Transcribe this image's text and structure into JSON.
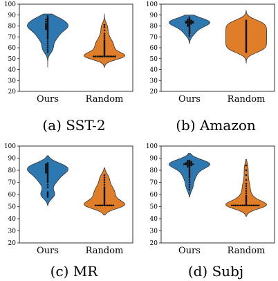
{
  "colors": {
    "ours": "#2e78b2",
    "random": "#e07d28",
    "dots": "#111111"
  },
  "chart_data": [
    {
      "type": "violin",
      "caption": "(a)  SST-2",
      "categories": [
        "Ours",
        "Random"
      ],
      "ylim": [
        20,
        100
      ],
      "yticks": [
        20,
        30,
        40,
        50,
        60,
        70,
        80,
        90,
        100
      ],
      "series": [
        {
          "category": "Ours",
          "range": [
            42,
            91
          ],
          "values": [
            89,
            88,
            87,
            86,
            86,
            85,
            84,
            84,
            83,
            82,
            82,
            81,
            81,
            80,
            80,
            79,
            79,
            78,
            78,
            77,
            77,
            76,
            75,
            74,
            73,
            72,
            71,
            70,
            69,
            68,
            66,
            64,
            62,
            60,
            58,
            56
          ]
        },
        {
          "category": "Random",
          "range": [
            42,
            91
          ],
          "values": [
            81,
            79,
            76,
            73,
            71,
            69,
            67,
            66,
            65,
            64,
            63,
            62,
            61,
            60,
            59,
            58,
            57,
            56,
            55,
            54,
            53,
            52,
            52,
            52,
            52,
            52,
            52,
            52,
            52,
            52,
            52,
            52,
            52,
            52
          ]
        }
      ]
    },
    {
      "type": "violin",
      "caption": "(b)  Amazon",
      "categories": [
        "Ours",
        "Random"
      ],
      "ylim": [
        20,
        100
      ],
      "yticks": [
        20,
        30,
        40,
        50,
        60,
        70,
        80,
        90,
        100
      ],
      "series": [
        {
          "category": "Ours",
          "range": [
            64,
            90
          ],
          "values": [
            88,
            87,
            86,
            86,
            85,
            85,
            85,
            84,
            84,
            84,
            84,
            84,
            83,
            83,
            83,
            83,
            83,
            82,
            82,
            82,
            81,
            81,
            80,
            80,
            79,
            78,
            77,
            76,
            75,
            74,
            73,
            71
          ]
        },
        {
          "category": "Random",
          "range": [
            46,
            94
          ],
          "values": [
            85,
            84,
            83,
            82,
            81,
            80,
            79,
            78,
            77,
            76,
            75,
            74,
            73,
            72,
            71,
            70,
            69,
            68,
            67,
            66,
            65,
            64,
            63,
            62,
            61,
            60,
            59,
            58,
            57,
            56
          ]
        }
      ]
    },
    {
      "type": "violin",
      "caption": "(c)  MR",
      "categories": [
        "Ours",
        "Random"
      ],
      "ylim": [
        20,
        100
      ],
      "yticks": [
        20,
        30,
        40,
        50,
        60,
        70,
        80,
        90,
        100
      ],
      "series": [
        {
          "category": "Ours",
          "range": [
            51,
            92
          ],
          "values": [
            86,
            85,
            85,
            84,
            84,
            83,
            83,
            82,
            82,
            81,
            81,
            80,
            80,
            79,
            79,
            78,
            78,
            77,
            76,
            75,
            74,
            73,
            72,
            71,
            70,
            68,
            66,
            62,
            61,
            60,
            59,
            58
          ]
        },
        {
          "category": "Random",
          "range": [
            43,
            82
          ],
          "values": [
            76,
            74,
            72,
            70,
            68,
            66,
            65,
            64,
            63,
            62,
            61,
            60,
            59,
            58,
            57,
            56,
            55,
            54,
            53,
            52,
            51,
            51,
            51,
            51,
            51,
            51,
            51,
            51,
            51,
            51,
            51
          ]
        }
      ]
    },
    {
      "type": "violin",
      "caption": "(d)  Subj",
      "categories": [
        "Ours",
        "Random"
      ],
      "ylim": [
        20,
        100
      ],
      "yticks": [
        20,
        30,
        40,
        50,
        60,
        70,
        80,
        90,
        100
      ],
      "series": [
        {
          "category": "Ours",
          "range": [
            58,
            94
          ],
          "values": [
            88,
            88,
            87,
            87,
            87,
            86,
            86,
            86,
            86,
            85,
            85,
            85,
            85,
            85,
            85,
            84,
            84,
            84,
            83,
            83,
            82,
            81,
            80,
            79,
            78,
            77,
            76,
            75,
            74,
            72,
            70,
            68,
            66,
            64
          ]
        },
        {
          "category": "Random",
          "range": [
            42,
            89
          ],
          "values": [
            84,
            80,
            76,
            72,
            69,
            67,
            65,
            63,
            61,
            59,
            58,
            57,
            56,
            55,
            54,
            53,
            52,
            51,
            51,
            51,
            51,
            51,
            51,
            51,
            51,
            51,
            51,
            51,
            51,
            51,
            51,
            51,
            51
          ]
        }
      ]
    }
  ]
}
